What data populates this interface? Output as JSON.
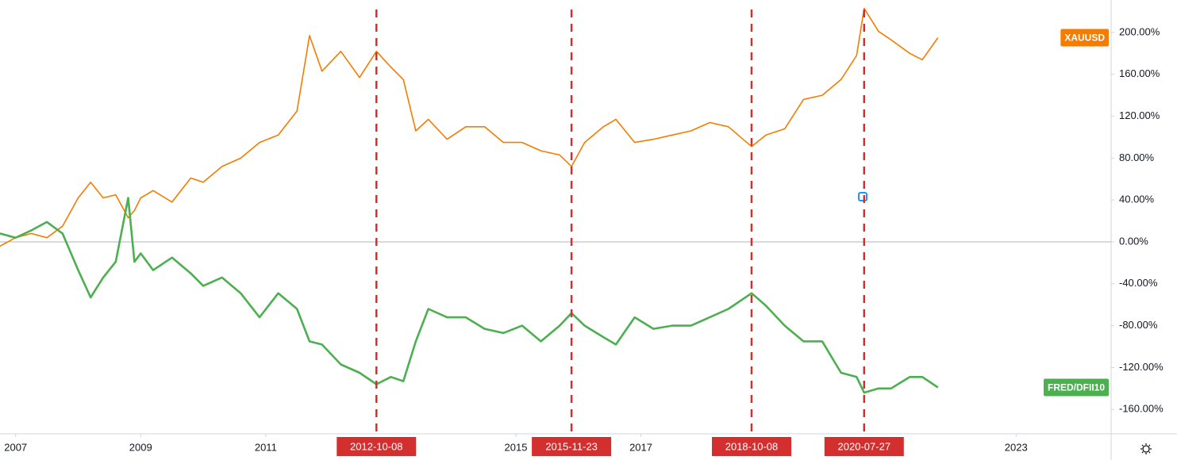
{
  "chart_data": {
    "type": "line",
    "x": [
      2006.75,
      2007.0,
      2007.25,
      2007.5,
      2007.75,
      2008.0,
      2008.2,
      2008.4,
      2008.6,
      2008.8,
      2008.9,
      2009.0,
      2009.2,
      2009.5,
      2009.8,
      2010.0,
      2010.3,
      2010.6,
      2010.9,
      2011.2,
      2011.5,
      2011.7,
      2011.9,
      2012.2,
      2012.5,
      2012.77,
      2013.0,
      2013.2,
      2013.4,
      2013.6,
      2013.9,
      2014.2,
      2014.5,
      2014.8,
      2015.1,
      2015.4,
      2015.7,
      2015.89,
      2016.1,
      2016.4,
      2016.6,
      2016.9,
      2017.2,
      2017.5,
      2017.8,
      2018.1,
      2018.4,
      2018.77,
      2019.0,
      2019.3,
      2019.6,
      2019.9,
      2020.2,
      2020.45,
      2020.57,
      2020.8,
      2021.0,
      2021.3,
      2021.5,
      2021.75
    ],
    "series": [
      {
        "name": "XAUUSD",
        "color": "#f57c00",
        "values": [
          -4,
          4,
          8,
          4,
          15,
          42,
          57,
          42,
          45,
          23,
          30,
          42,
          49,
          38,
          61,
          57,
          72,
          80,
          95,
          102,
          125,
          197,
          163,
          182,
          157,
          182,
          167,
          155,
          106,
          117,
          98,
          110,
          110,
          95,
          95,
          87,
          83,
          72,
          95,
          110,
          117,
          95,
          98,
          102,
          106,
          114,
          110,
          91,
          102,
          108,
          136,
          140,
          155,
          178,
          223,
          201,
          193,
          180,
          174,
          195
        ]
      },
      {
        "name": "FRED/DFII10",
        "color": "#4caf50",
        "values": [
          8,
          4,
          11,
          19,
          8,
          -27,
          -53,
          -34,
          -19,
          42,
          -19,
          -11,
          -27,
          -15,
          -30,
          -42,
          -34,
          -49,
          -72,
          -49,
          -64,
          -95,
          -98,
          -117,
          -125,
          -136,
          -129,
          -133,
          -95,
          -64,
          -72,
          -72,
          -83,
          -87,
          -80,
          -95,
          -80,
          -68,
          -80,
          -91,
          -98,
          -72,
          -83,
          -80,
          -80,
          -72,
          -64,
          -49,
          -61,
          -80,
          -95,
          -95,
          -125,
          -129,
          -144,
          -140,
          -140,
          -129,
          -129,
          -139
        ]
      }
    ],
    "xlim": [
      2006.75,
      2024.52
    ],
    "xticks": [
      2007,
      2009,
      2011,
      2015,
      2017,
      2023
    ],
    "ylim": [
      -183.3,
      231
    ],
    "yticks": [
      {
        "value": -160,
        "label": "-160.00%"
      },
      {
        "value": -120,
        "label": "-120.00%"
      },
      {
        "value": -80,
        "label": "-80.00%"
      },
      {
        "value": -40,
        "label": "-40.00%"
      },
      {
        "value": 0,
        "label": "0.00%"
      },
      {
        "value": 40,
        "label": "40.00%"
      },
      {
        "value": 80,
        "label": "80.00%"
      },
      {
        "value": 120,
        "label": "120.00%"
      },
      {
        "value": 160,
        "label": "160.00%"
      },
      {
        "value": 200,
        "label": "200.00%"
      }
    ],
    "zero_line": true,
    "marker_color": "#d32f2f",
    "markers": [
      {
        "value": 2012.77,
        "label": "2012-10-08"
      },
      {
        "value": 2015.89,
        "label": "2015-11-23"
      },
      {
        "value": 2018.77,
        "label": "2018-10-08"
      },
      {
        "value": 2020.57,
        "label": "2020-07-27"
      }
    ]
  }
}
